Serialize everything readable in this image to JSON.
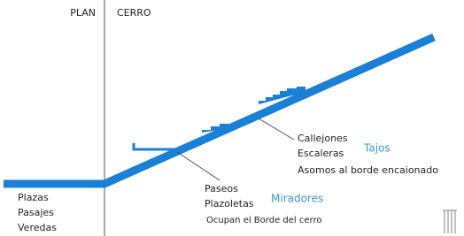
{
  "header": {
    "left": "PLAN",
    "right": "CERRO"
  },
  "groups": [
    {
      "items": [
        "Plazas",
        "Pasajes",
        "Veredas"
      ]
    },
    {
      "items": [
        "Paseos",
        "Plazoletas",
        "Ocupan el Borde del cerro"
      ],
      "tag": "Miradores"
    },
    {
      "items": [
        "Callejones",
        "Escaleras",
        "Asomos al borde encaionado"
      ],
      "tag": "Tajos"
    }
  ]
}
